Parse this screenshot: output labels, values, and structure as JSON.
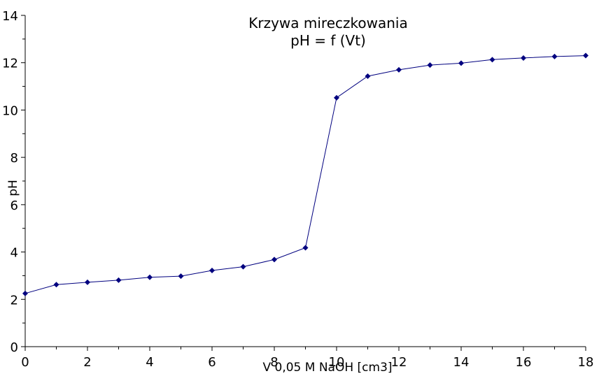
{
  "chart_data": {
    "type": "line",
    "title": "Krzywa mireczkowania",
    "subtitle": "pH = f (Vt)",
    "xlabel": "V 0,05 M NaOH [cm3]",
    "ylabel": "pH",
    "xlim": [
      0,
      18
    ],
    "ylim": [
      0,
      14
    ],
    "xticks": [
      "0",
      "2",
      "4",
      "6",
      "8",
      "10",
      "12",
      "14",
      "16",
      "18"
    ],
    "yticks": [
      "0",
      "2",
      "4",
      "6",
      "8",
      "10",
      "12",
      "14"
    ],
    "grid": false,
    "series": [
      {
        "color": "#00007f",
        "marker": "diamond",
        "x": [
          0,
          1,
          2,
          3,
          4,
          5,
          6,
          7,
          8,
          9,
          10,
          11,
          12,
          13,
          14,
          15,
          16,
          17,
          18
        ],
        "y": [
          2.25,
          2.62,
          2.72,
          2.81,
          2.93,
          2.98,
          3.22,
          3.38,
          3.68,
          4.18,
          10.52,
          11.43,
          11.7,
          11.9,
          11.98,
          12.13,
          12.2,
          12.26,
          12.3
        ]
      }
    ]
  }
}
